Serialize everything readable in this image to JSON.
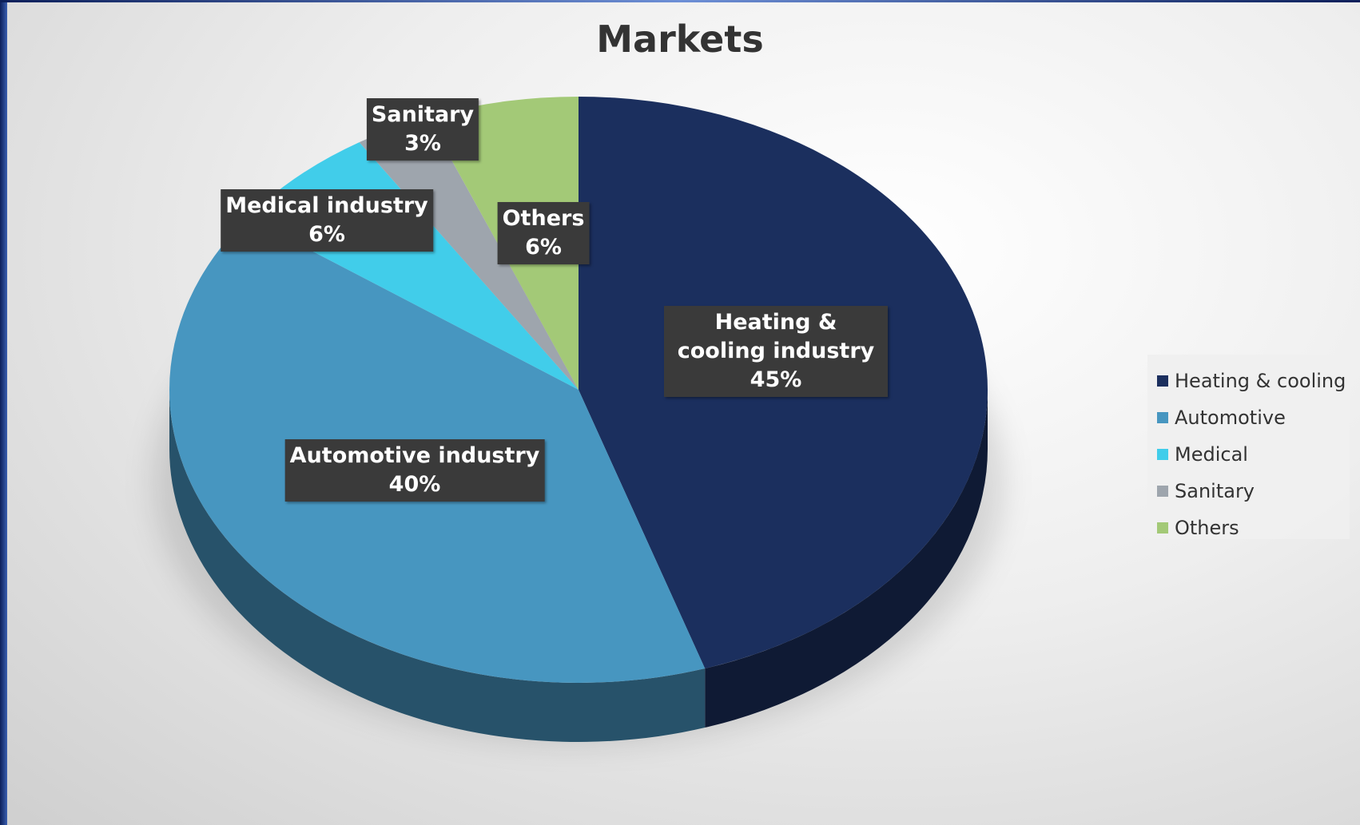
{
  "chart_data": {
    "type": "pie",
    "title": "Markets",
    "categories": [
      "Heating & cooling",
      "Automotive",
      "Medical",
      "Sanitary",
      "Others"
    ],
    "category_labels": [
      "Heating & cooling industry",
      "Automotive industry",
      "Medical industry",
      "Sanitary",
      "Others"
    ],
    "values": [
      45,
      40,
      6,
      3,
      6
    ],
    "value_labels": [
      "45%",
      "40%",
      "6%",
      "3%",
      "6%"
    ],
    "colors": [
      "#1b2f5e",
      "#4796c0",
      "#41cdea",
      "#9ea5ad",
      "#a3c977"
    ],
    "legend": "right"
  }
}
